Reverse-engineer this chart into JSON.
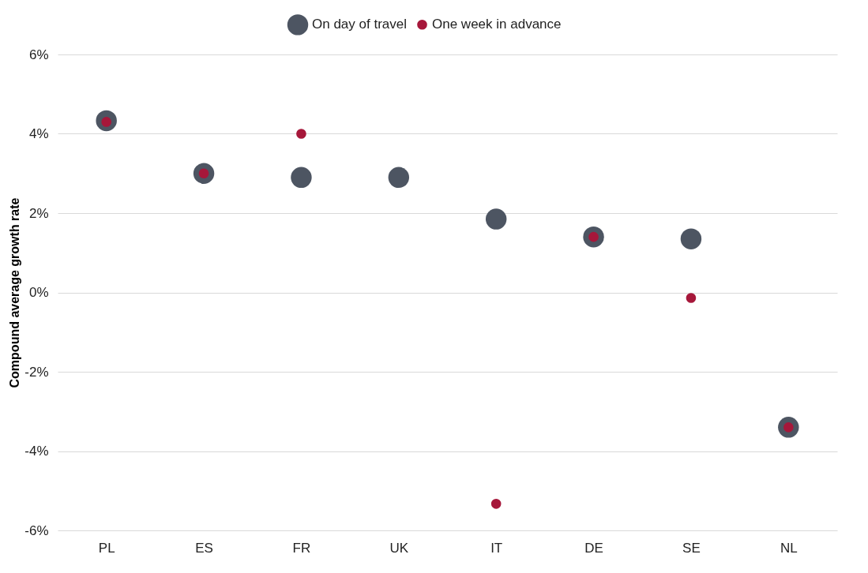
{
  "chart_data": {
    "type": "scatter",
    "ylabel": "Compound average growth rate",
    "categories": [
      "PL",
      "ES",
      "FR",
      "UK",
      "IT",
      "DE",
      "SE",
      "NL"
    ],
    "series": [
      {
        "name": "On day of travel",
        "color": "#4d5562",
        "values": [
          4.33,
          3.0,
          2.9,
          2.9,
          1.85,
          1.4,
          1.35,
          -3.4
        ]
      },
      {
        "name": "One week in advance",
        "color": "#a6173a",
        "values": [
          4.3,
          3.0,
          4.0,
          null,
          -5.33,
          1.4,
          -0.14,
          -3.4
        ]
      }
    ],
    "ylim": [
      -6,
      6
    ],
    "yticks": [
      {
        "value": -6,
        "label": "-6%"
      },
      {
        "value": -4,
        "label": "-4%"
      },
      {
        "value": -2,
        "label": "-2%"
      },
      {
        "value": 0,
        "label": "0%"
      },
      {
        "value": 2,
        "label": "2%"
      },
      {
        "value": 4,
        "label": "4%"
      },
      {
        "value": 6,
        "label": "6%"
      }
    ],
    "grid": "y",
    "legend": "top",
    "marker": "circle"
  }
}
